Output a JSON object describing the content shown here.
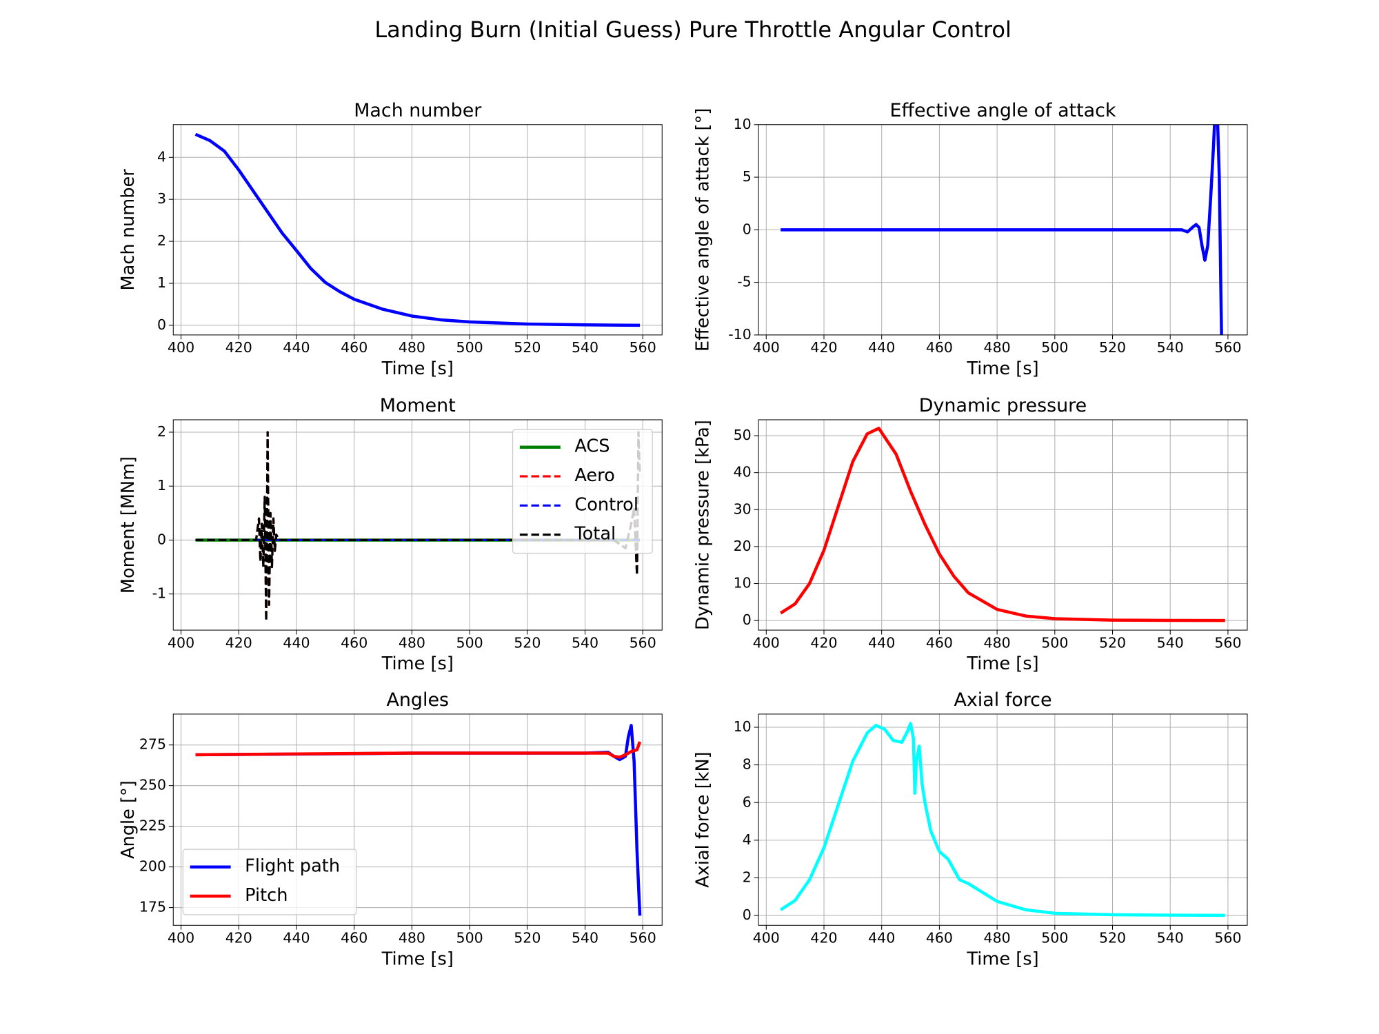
{
  "title": "Landing Burn (Initial Guess) Pure Throttle Angular Control",
  "chart_data": [
    {
      "type": "line",
      "title": "Mach number",
      "xlabel": "Time [s]",
      "ylabel": "Mach number",
      "xlim": [
        397.3,
        566.7
      ],
      "xticks": [
        400,
        420,
        440,
        460,
        480,
        500,
        520,
        540,
        560
      ],
      "ylim": [
        -0.23,
        4.78
      ],
      "yticks": [
        0,
        1,
        2,
        3,
        4
      ],
      "grid": true,
      "series": [
        {
          "color": "#0000ff",
          "linestyle": "solid",
          "x": [
            405,
            410,
            415,
            420,
            425,
            430,
            435,
            440,
            445,
            450,
            455,
            460,
            470,
            480,
            490,
            500,
            520,
            540,
            559
          ],
          "values": [
            4.55,
            4.4,
            4.15,
            3.7,
            3.2,
            2.7,
            2.2,
            1.78,
            1.35,
            1.02,
            0.8,
            0.62,
            0.38,
            0.22,
            0.13,
            0.08,
            0.03,
            0.01,
            0.0
          ]
        }
      ]
    },
    {
      "type": "line",
      "title": "Effective angle of attack",
      "xlabel": "Time [s]",
      "ylabel": "Effective angle of attack [°]",
      "xlim": [
        397.3,
        566.7
      ],
      "xticks": [
        400,
        420,
        440,
        460,
        480,
        500,
        520,
        540,
        560
      ],
      "ylim": [
        -10,
        10
      ],
      "yticks": [
        -10,
        -5,
        0,
        5,
        10
      ],
      "grid": true,
      "series": [
        {
          "color": "#0000ff",
          "linestyle": "solid",
          "x": [
            405,
            540,
            544,
            546,
            548,
            549,
            550,
            551,
            552,
            553,
            554,
            555,
            556,
            557,
            557.5,
            558
          ],
          "values": [
            0,
            0,
            0,
            -0.2,
            0.3,
            0.5,
            0.2,
            -1.5,
            -2.9,
            -1.5,
            3,
            8,
            14,
            5,
            -5,
            -14
          ]
        }
      ]
    },
    {
      "type": "line",
      "title": "Moment",
      "xlabel": "Time [s]",
      "ylabel": "Moment [MNm]",
      "xlim": [
        397.3,
        566.7
      ],
      "xticks": [
        400,
        420,
        440,
        460,
        480,
        500,
        520,
        540,
        560
      ],
      "ylim": [
        -1.67,
        2.23
      ],
      "yticks": [
        -1,
        0,
        1,
        2
      ],
      "grid": true,
      "legend": "upper right",
      "series": [
        {
          "name": "ACS",
          "color": "#008000",
          "linestyle": "solid",
          "x": [
            405,
            559
          ],
          "values": [
            0,
            0
          ]
        },
        {
          "name": "Aero",
          "color": "#ff0000",
          "linestyle": "dashed",
          "x": [
            405,
            426,
            427,
            427.5,
            428,
            428.5,
            429,
            429.5,
            430,
            430.5,
            431,
            431.5,
            432,
            432.5,
            433,
            434,
            550,
            554,
            556,
            557,
            558,
            558.5,
            559
          ],
          "values": [
            0,
            0,
            0.4,
            -0.4,
            0.3,
            -0.5,
            0.8,
            -1.5,
            2.0,
            -1.2,
            0.5,
            -0.5,
            0.4,
            -0.2,
            0.1,
            0,
            0,
            -0.15,
            0.3,
            0.6,
            -0.65,
            2.0,
            1.2
          ]
        },
        {
          "name": "Control",
          "color": "#0000ff",
          "linestyle": "dashed",
          "x": [
            405,
            559
          ],
          "values": [
            0,
            0
          ]
        },
        {
          "name": "Total",
          "color": "#000000",
          "linestyle": "dashed",
          "x": [
            405,
            426,
            427,
            427.5,
            428,
            428.5,
            429,
            429.5,
            430,
            430.5,
            431,
            431.5,
            432,
            432.5,
            433,
            434,
            550,
            554,
            556,
            557,
            558,
            558.5,
            559
          ],
          "values": [
            0,
            0,
            0.4,
            -0.4,
            0.3,
            -0.5,
            0.8,
            -1.5,
            2.0,
            -1.2,
            0.5,
            -0.5,
            0.4,
            -0.2,
            0.1,
            0,
            0,
            -0.15,
            0.3,
            0.6,
            -0.65,
            2.0,
            1.2
          ]
        }
      ]
    },
    {
      "type": "line",
      "title": "Dynamic pressure",
      "xlabel": "Time [s]",
      "ylabel": "Dynamic pressure [kPa]",
      "xlim": [
        397.3,
        566.7
      ],
      "xticks": [
        400,
        420,
        440,
        460,
        480,
        500,
        520,
        540,
        560
      ],
      "ylim": [
        -2.6,
        54.3
      ],
      "yticks": [
        0,
        10,
        20,
        30,
        40,
        50
      ],
      "grid": true,
      "series": [
        {
          "color": "#ff0000",
          "linestyle": "solid",
          "x": [
            405,
            410,
            415,
            420,
            425,
            430,
            435,
            439,
            445,
            450,
            455,
            460,
            465,
            470,
            480,
            490,
            500,
            520,
            540,
            559
          ],
          "values": [
            2,
            4.5,
            10,
            19,
            31,
            43,
            50.5,
            52,
            45,
            35,
            26,
            18,
            12,
            7.5,
            3,
            1.2,
            0.5,
            0.1,
            0.03,
            0.01
          ]
        }
      ]
    },
    {
      "type": "line",
      "title": "Angles",
      "xlabel": "Time [s]",
      "ylabel": "Angle [°]",
      "xlim": [
        397.3,
        566.7
      ],
      "xticks": [
        400,
        420,
        440,
        460,
        480,
        500,
        520,
        540,
        560
      ],
      "ylim": [
        164.1,
        294
      ],
      "yticks": [
        175,
        200,
        225,
        250,
        275
      ],
      "grid": true,
      "legend": "lower left",
      "series": [
        {
          "name": "Flight path",
          "color": "#0000ff",
          "linestyle": "solid",
          "x": [
            405,
            450,
            480,
            540,
            548,
            550,
            552,
            554,
            555,
            556,
            557,
            558,
            559
          ],
          "values": [
            269,
            269.5,
            270,
            270,
            270.5,
            268,
            266,
            268,
            280,
            287,
            265,
            210,
            170
          ]
        },
        {
          "name": "Pitch",
          "color": "#ff0000",
          "linestyle": "solid",
          "x": [
            405,
            440,
            480,
            545,
            548,
            550,
            552,
            554,
            556,
            558,
            559
          ],
          "values": [
            269,
            269.5,
            270,
            270,
            270,
            268,
            267.5,
            269,
            271,
            272,
            277
          ]
        }
      ]
    },
    {
      "type": "line",
      "title": "Axial force",
      "xlabel": "Time [s]",
      "ylabel": "Axial force [kN]",
      "xlim": [
        397.3,
        566.7
      ],
      "xticks": [
        400,
        420,
        440,
        460,
        480,
        500,
        520,
        540,
        560
      ],
      "ylim": [
        -0.52,
        10.7
      ],
      "yticks": [
        0,
        2,
        4,
        6,
        8,
        10
      ],
      "grid": true,
      "series": [
        {
          "color": "#00ffff",
          "linestyle": "solid",
          "x": [
            405,
            410,
            415,
            420,
            425,
            430,
            435,
            438,
            441,
            444,
            447,
            449,
            450,
            451,
            451.5,
            452,
            453,
            454,
            455,
            457,
            460,
            463,
            467,
            470,
            480,
            490,
            500,
            520,
            540,
            559
          ],
          "values": [
            0.3,
            0.8,
            1.9,
            3.6,
            5.9,
            8.2,
            9.7,
            10.1,
            9.9,
            9.3,
            9.2,
            9.8,
            10.2,
            9.4,
            6.5,
            8.2,
            9,
            7,
            6,
            4.5,
            3.4,
            3,
            1.9,
            1.7,
            0.75,
            0.3,
            0.12,
            0.04,
            0.02,
            0.01
          ]
        }
      ]
    }
  ]
}
